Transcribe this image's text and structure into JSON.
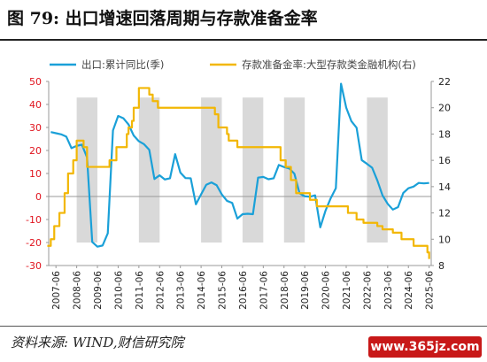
{
  "header": {
    "title": "图 79:  出口增速回落周期与存款准备金率"
  },
  "footer": {
    "source": "资料来源: WIND,财信研究院",
    "watermark": "www.365jz.com"
  },
  "chart_data": {
    "type": "line",
    "x_ticks": [
      "2007-06",
      "2008-06",
      "2009-06",
      "2010-06",
      "2011-06",
      "2012-06",
      "2013-06",
      "2014-06",
      "2015-06",
      "2016-06",
      "2017-06",
      "2018-06",
      "2019-06",
      "2020-06",
      "2021-06",
      "2022-06",
      "2023-06",
      "2024-06",
      "2025-06"
    ],
    "left_axis": {
      "ylim": [
        -30,
        50
      ],
      "ticks": [
        -30,
        -20,
        -10,
        0,
        10,
        20,
        30,
        40,
        50
      ],
      "tick_color": "#e0141e",
      "neg_tick_color": "#e0141e"
    },
    "right_axis": {
      "ylim": [
        8,
        22
      ],
      "ticks": [
        8,
        10,
        12,
        14,
        16,
        18,
        20,
        22
      ],
      "tick_color": "#222222"
    },
    "shaded_periods": [
      [
        "2008-06",
        "2009-06"
      ],
      [
        "2011-06",
        "2012-06"
      ],
      [
        "2014-06",
        "2015-06"
      ],
      [
        "2016-06",
        "2017-06"
      ],
      [
        "2018-06",
        "2019-06"
      ],
      [
        "2022-06",
        "2023-06"
      ]
    ],
    "colors": {
      "shade": "#d9d9d9",
      "export": "#1aa0d8",
      "rrr": "#f2b705"
    },
    "series": [
      {
        "name": "出口:累计同比(季)",
        "axis": "left",
        "color": "#1aa0d8",
        "points": [
          [
            "2007-03",
            28
          ],
          [
            "2007-06",
            27.5
          ],
          [
            "2007-09",
            27
          ],
          [
            "2007-12",
            26
          ],
          [
            "2008-03",
            21
          ],
          [
            "2008-06",
            22
          ],
          [
            "2008-09",
            22.5
          ],
          [
            "2008-12",
            17
          ],
          [
            "2009-03",
            -19.8
          ],
          [
            "2009-06",
            -21.8
          ],
          [
            "2009-09",
            -21.3
          ],
          [
            "2009-12",
            -16
          ],
          [
            "2010-03",
            28.7
          ],
          [
            "2010-06",
            35
          ],
          [
            "2010-09",
            34
          ],
          [
            "2010-12",
            31.3
          ],
          [
            "2011-03",
            26.5
          ],
          [
            "2011-06",
            24
          ],
          [
            "2011-09",
            22.7
          ],
          [
            "2011-12",
            20.3
          ],
          [
            "2012-03",
            7.6
          ],
          [
            "2012-06",
            9.2
          ],
          [
            "2012-09",
            7.4
          ],
          [
            "2012-12",
            7.9
          ],
          [
            "2013-03",
            18.4
          ],
          [
            "2013-06",
            10.4
          ],
          [
            "2013-09",
            8
          ],
          [
            "2013-12",
            7.9
          ],
          [
            "2014-03",
            -3.4
          ],
          [
            "2014-06",
            0.9
          ],
          [
            "2014-09",
            5.1
          ],
          [
            "2014-12",
            6.1
          ],
          [
            "2015-03",
            4.9
          ],
          [
            "2015-06",
            0.9
          ],
          [
            "2015-09",
            -1.9
          ],
          [
            "2015-12",
            -2.8
          ],
          [
            "2016-03",
            -9.6
          ],
          [
            "2016-06",
            -7.7
          ],
          [
            "2016-09",
            -7.5
          ],
          [
            "2016-12",
            -7.7
          ],
          [
            "2017-03",
            8.2
          ],
          [
            "2017-06",
            8.5
          ],
          [
            "2017-09",
            7.5
          ],
          [
            "2017-12",
            7.9
          ],
          [
            "2018-03",
            13.7
          ],
          [
            "2018-06",
            12.8
          ],
          [
            "2018-09",
            12.2
          ],
          [
            "2018-12",
            9.9
          ],
          [
            "2019-03",
            1.4
          ],
          [
            "2019-06",
            0.1
          ],
          [
            "2019-09",
            -0.1
          ],
          [
            "2019-12",
            0.5
          ],
          [
            "2020-03",
            -13.4
          ],
          [
            "2020-06",
            -6.2
          ],
          [
            "2020-09",
            -0.8
          ],
          [
            "2020-12",
            3.6
          ],
          [
            "2021-03",
            49
          ],
          [
            "2021-06",
            38.6
          ],
          [
            "2021-09",
            32.7
          ],
          [
            "2021-12",
            29.9
          ],
          [
            "2022-03",
            15.8
          ],
          [
            "2022-06",
            14.2
          ],
          [
            "2022-09",
            12.5
          ],
          [
            "2022-12",
            7
          ],
          [
            "2023-03",
            0.5
          ],
          [
            "2023-06",
            -3.2
          ],
          [
            "2023-09",
            -5.7
          ],
          [
            "2023-12",
            -4.6
          ],
          [
            "2024-03",
            1.5
          ],
          [
            "2024-06",
            3.6
          ],
          [
            "2024-09",
            4.3
          ],
          [
            "2024-12",
            5.9
          ],
          [
            "2025-03",
            5.7
          ],
          [
            "2025-06",
            5.9
          ]
        ]
      },
      {
        "name": "存款准备金率:大型存款类金融机构(右)",
        "axis": "right",
        "color": "#f2b705",
        "points": [
          [
            "2007-01",
            9.5
          ],
          [
            "2007-03",
            10
          ],
          [
            "2007-05",
            11
          ],
          [
            "2007-08",
            12
          ],
          [
            "2007-11",
            13.5
          ],
          [
            "2008-01",
            15
          ],
          [
            "2008-04",
            16
          ],
          [
            "2008-06",
            17.5
          ],
          [
            "2008-09",
            17.5
          ],
          [
            "2008-10",
            17
          ],
          [
            "2008-12",
            15.5
          ],
          [
            "2009-06",
            15.5
          ],
          [
            "2010-01",
            16
          ],
          [
            "2010-05",
            17
          ],
          [
            "2010-11",
            18
          ],
          [
            "2010-12",
            18.5
          ],
          [
            "2011-02",
            19
          ],
          [
            "2011-03",
            20
          ],
          [
            "2011-06",
            21.5
          ],
          [
            "2011-12",
            21
          ],
          [
            "2012-02",
            20.5
          ],
          [
            "2012-05",
            20
          ],
          [
            "2015-02",
            19.5
          ],
          [
            "2015-04",
            18.5
          ],
          [
            "2015-06",
            18.5
          ],
          [
            "2015-09",
            18
          ],
          [
            "2015-10",
            17.5
          ],
          [
            "2016-03",
            17
          ],
          [
            "2018-04",
            16
          ],
          [
            "2018-07",
            15.5
          ],
          [
            "2018-10",
            14.5
          ],
          [
            "2019-01",
            13.5
          ],
          [
            "2019-09",
            13
          ],
          [
            "2020-01",
            12.5
          ],
          [
            "2021-07",
            12
          ],
          [
            "2021-12",
            11.5
          ],
          [
            "2022-04",
            11.25
          ],
          [
            "2022-12",
            11
          ],
          [
            "2023-03",
            10.75
          ],
          [
            "2023-09",
            10.5
          ],
          [
            "2024-02",
            10
          ],
          [
            "2024-09",
            9.5
          ],
          [
            "2025-05",
            9
          ],
          [
            "2025-06",
            8.5
          ]
        ]
      }
    ]
  }
}
